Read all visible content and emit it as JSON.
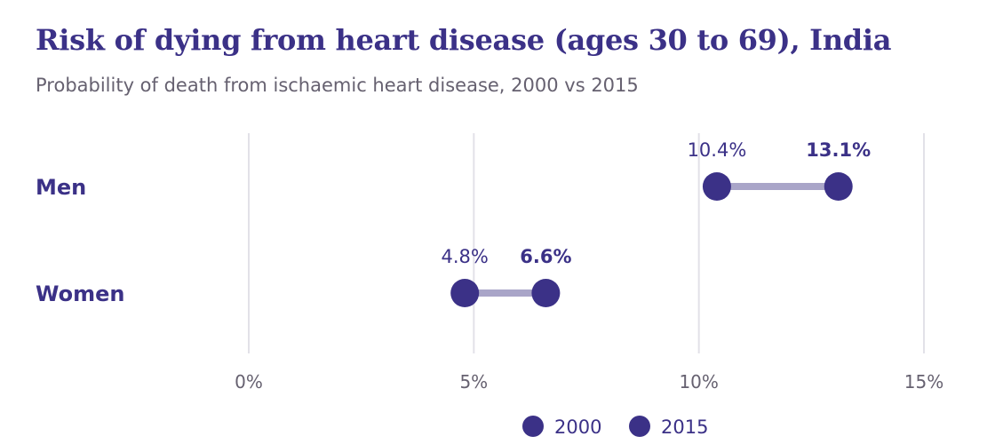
{
  "chart_data": {
    "type": "dumbbell",
    "title": "Risk of dying from heart disease (ages 30 to 69), India",
    "subtitle": "Probability of death from ischaemic heart disease, 2000 vs 2015",
    "categories": [
      "Men",
      "Women"
    ],
    "series": [
      {
        "name": "2000",
        "values": [
          10.4,
          4.8
        ],
        "labels": [
          "10.4%",
          "4.8%"
        ]
      },
      {
        "name": "2015",
        "values": [
          13.1,
          6.6
        ],
        "labels": [
          "13.1%",
          "6.6%"
        ]
      }
    ],
    "xlim": [
      0,
      15
    ],
    "xticks": [
      0,
      5,
      10,
      15
    ],
    "xtick_labels": [
      "0%",
      "5%",
      "10%",
      "15%"
    ],
    "grid": true,
    "legend_position": "bottom-center",
    "colors": {
      "dot": "#3b3187",
      "connector": "#a9a5c8",
      "grid": "#e2e1e8",
      "text": "#3b3187",
      "muted": "#666170"
    }
  }
}
